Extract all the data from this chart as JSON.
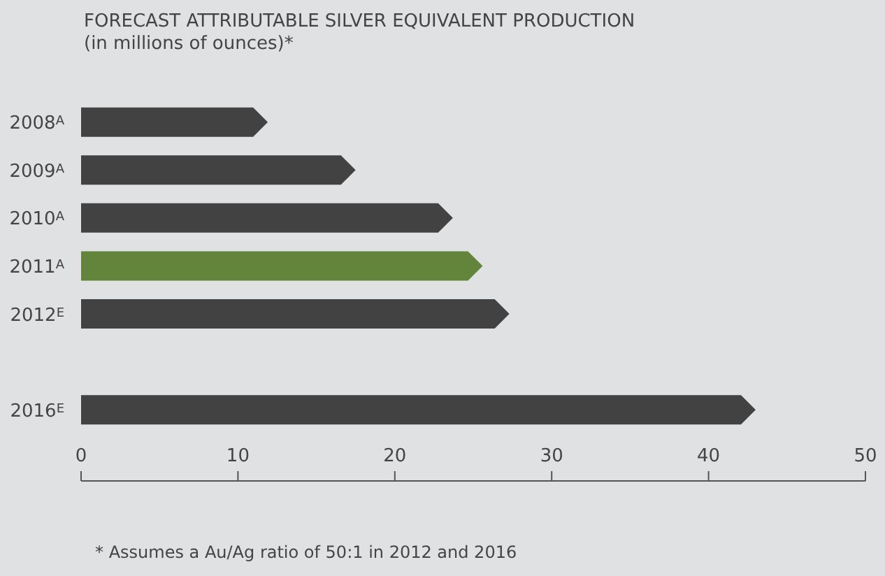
{
  "chart_data": {
    "type": "bar",
    "orientation": "horizontal",
    "title": "FORECAST ATTRIBUTABLE SILVER EQUIVALENT PRODUCTION",
    "subtitle": "(in millions of ounces)*",
    "categories": [
      "2008$^{A}$",
      "2009$^{A}$",
      "2010$^{A}$",
      "2011$^{A}$",
      "2012$^{E}$",
      null,
      "2016$^{E}$"
    ],
    "values": [
      11.9,
      17.5,
      23.7,
      25.6,
      27.3,
      null,
      43.0
    ],
    "colors": [
      "#424242",
      "#424242",
      "#424242",
      "#62843b",
      "#424242",
      "#424242",
      "#424242"
    ],
    "xlim": [
      0,
      50
    ],
    "xticks": [
      0,
      10,
      20,
      30,
      40,
      50
    ],
    "annotations": [
      "* Assumes a Au/Ag ratio of 50:1 in 2012 and 2016"
    ]
  }
}
